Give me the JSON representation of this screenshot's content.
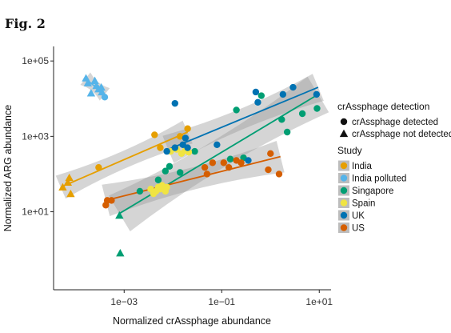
{
  "figure_label": "Fig. 2",
  "chart_data": {
    "type": "scatter",
    "xlabel": "Normalized crAssphage abundance",
    "ylabel": "Normalized ARG abundance",
    "x_scale": "log",
    "y_scale": "log",
    "xlim": [
      4e-05,
      15
    ],
    "ylim": [
      0.12,
      200000
    ],
    "x_ticks": [
      {
        "value": 0.001,
        "label": "1e−03"
      },
      {
        "value": 0.1,
        "label": "1e−01"
      },
      {
        "value": 10,
        "label": "1e+01"
      }
    ],
    "y_ticks": [
      {
        "value": 10,
        "label": "1e+01"
      },
      {
        "value": 1000,
        "label": "1e+03"
      },
      {
        "value": 100000,
        "label": "1e+05"
      }
    ],
    "grid": false,
    "legend_placement": "right",
    "detection_legend": {
      "title": "crAssphage detection",
      "items": [
        {
          "label": "crAssphage detected",
          "shape": "circle"
        },
        {
          "label": "crAssphage not detected",
          "shape": "triangle"
        }
      ]
    },
    "series_legend_title": "Study",
    "series": [
      {
        "name": "India",
        "color": "#E69F00",
        "points": [
          {
            "x": 5.5e-05,
            "y": 45,
            "shape": "triangle"
          },
          {
            "x": 7e-05,
            "y": 60,
            "shape": "triangle"
          },
          {
            "x": 7.5e-05,
            "y": 80,
            "shape": "triangle"
          },
          {
            "x": 8e-05,
            "y": 30,
            "shape": "triangle"
          },
          {
            "x": 0.0003,
            "y": 150,
            "shape": "circle"
          },
          {
            "x": 0.0042,
            "y": 1100,
            "shape": "circle"
          },
          {
            "x": 0.0055,
            "y": 500,
            "shape": "circle"
          },
          {
            "x": 0.014,
            "y": 1000,
            "shape": "circle"
          },
          {
            "x": 0.02,
            "y": 1600,
            "shape": "circle"
          }
        ],
        "fit": {
          "x0": 5e-05,
          "y0": 45,
          "x1": 0.02,
          "y1": 1300
        }
      },
      {
        "name": "India polluted",
        "color": "#56B4E9",
        "points": [
          {
            "x": 0.000165,
            "y": 35000,
            "shape": "triangle"
          },
          {
            "x": 0.00018,
            "y": 26000,
            "shape": "triangle"
          },
          {
            "x": 0.00021,
            "y": 14000,
            "shape": "triangle"
          },
          {
            "x": 0.00025,
            "y": 30000,
            "shape": "triangle"
          },
          {
            "x": 0.00027,
            "y": 22000,
            "shape": "triangle"
          },
          {
            "x": 0.0003,
            "y": 18000,
            "shape": "triangle"
          },
          {
            "x": 0.00034,
            "y": 20000,
            "shape": "triangle"
          },
          {
            "x": 0.00035,
            "y": 15000,
            "shape": "triangle"
          },
          {
            "x": 0.0004,
            "y": 11000,
            "shape": "circle"
          }
        ],
        "fit": {
          "x0": 0.00016,
          "y0": 34000,
          "x1": 0.0004,
          "y1": 13000
        }
      },
      {
        "name": "Singapore",
        "color": "#009E73",
        "points": [
          {
            "x": 0.0008,
            "y": 8,
            "shape": "triangle"
          },
          {
            "x": 0.00083,
            "y": 0.8,
            "shape": "triangle"
          },
          {
            "x": 0.0021,
            "y": 35,
            "shape": "circle"
          },
          {
            "x": 0.005,
            "y": 70,
            "shape": "circle"
          },
          {
            "x": 0.007,
            "y": 120,
            "shape": "circle"
          },
          {
            "x": 0.0085,
            "y": 160,
            "shape": "circle"
          },
          {
            "x": 0.014,
            "y": 110,
            "shape": "circle"
          },
          {
            "x": 0.028,
            "y": 400,
            "shape": "circle"
          },
          {
            "x": 0.15,
            "y": 250,
            "shape": "circle"
          },
          {
            "x": 0.2,
            "y": 5000,
            "shape": "circle"
          },
          {
            "x": 0.28,
            "y": 270,
            "shape": "circle"
          },
          {
            "x": 0.65,
            "y": 12000,
            "shape": "circle"
          },
          {
            "x": 1.7,
            "y": 2800,
            "shape": "circle"
          },
          {
            "x": 2.2,
            "y": 1300,
            "shape": "circle"
          },
          {
            "x": 4.5,
            "y": 4000,
            "shape": "circle"
          },
          {
            "x": 9.0,
            "y": 5500,
            "shape": "circle"
          }
        ],
        "fit": {
          "x0": 0.0008,
          "y0": 9,
          "x1": 9.5,
          "y1": 13000
        }
      },
      {
        "name": "Spain",
        "color": "#F0E442",
        "points": [
          {
            "x": 0.0035,
            "y": 40,
            "shape": "circle"
          },
          {
            "x": 0.004,
            "y": 30,
            "shape": "circle"
          },
          {
            "x": 0.0045,
            "y": 35,
            "shape": "circle"
          },
          {
            "x": 0.005,
            "y": 45,
            "shape": "circle"
          },
          {
            "x": 0.0055,
            "y": 40,
            "shape": "circle"
          },
          {
            "x": 0.006,
            "y": 50,
            "shape": "circle"
          },
          {
            "x": 0.0065,
            "y": 45,
            "shape": "circle"
          },
          {
            "x": 0.007,
            "y": 35,
            "shape": "circle"
          },
          {
            "x": 0.0075,
            "y": 45,
            "shape": "circle"
          },
          {
            "x": 0.009,
            "y": 400,
            "shape": "circle"
          },
          {
            "x": 0.012,
            "y": 450,
            "shape": "circle"
          },
          {
            "x": 0.015,
            "y": 350,
            "shape": "circle"
          },
          {
            "x": 0.018,
            "y": 420,
            "shape": "circle"
          },
          {
            "x": 0.021,
            "y": 380,
            "shape": "circle"
          }
        ]
      },
      {
        "name": "UK",
        "color": "#0072B2",
        "points": [
          {
            "x": 0.0075,
            "y": 400,
            "shape": "circle"
          },
          {
            "x": 0.011,
            "y": 7500,
            "shape": "circle"
          },
          {
            "x": 0.011,
            "y": 500,
            "shape": "circle"
          },
          {
            "x": 0.016,
            "y": 600,
            "shape": "circle"
          },
          {
            "x": 0.018,
            "y": 900,
            "shape": "circle"
          },
          {
            "x": 0.02,
            "y": 500,
            "shape": "circle"
          },
          {
            "x": 0.08,
            "y": 600,
            "shape": "circle"
          },
          {
            "x": 0.35,
            "y": 230,
            "shape": "circle"
          },
          {
            "x": 0.5,
            "y": 15000,
            "shape": "circle"
          },
          {
            "x": 0.55,
            "y": 8000,
            "shape": "circle"
          },
          {
            "x": 1.8,
            "y": 13000,
            "shape": "circle"
          },
          {
            "x": 2.9,
            "y": 20000,
            "shape": "circle"
          },
          {
            "x": 8.8,
            "y": 13000,
            "shape": "circle"
          }
        ],
        "fit": {
          "x0": 0.008,
          "y0": 450,
          "x1": 9.5,
          "y1": 20000
        }
      },
      {
        "name": "US",
        "color": "#D55E00",
        "points": [
          {
            "x": 0.00042,
            "y": 15,
            "shape": "circle"
          },
          {
            "x": 0.00045,
            "y": 20,
            "shape": "circle"
          },
          {
            "x": 0.00055,
            "y": 20,
            "shape": "circle"
          },
          {
            "x": 0.045,
            "y": 150,
            "shape": "circle"
          },
          {
            "x": 0.05,
            "y": 100,
            "shape": "circle"
          },
          {
            "x": 0.065,
            "y": 200,
            "shape": "circle"
          },
          {
            "x": 0.11,
            "y": 200,
            "shape": "circle"
          },
          {
            "x": 0.14,
            "y": 150,
            "shape": "circle"
          },
          {
            "x": 0.2,
            "y": 230,
            "shape": "circle"
          },
          {
            "x": 0.25,
            "y": 200,
            "shape": "circle"
          },
          {
            "x": 0.9,
            "y": 130,
            "shape": "circle"
          },
          {
            "x": 1.0,
            "y": 350,
            "shape": "circle"
          },
          {
            "x": 1.5,
            "y": 100,
            "shape": "circle"
          }
        ],
        "fit": {
          "x0": 0.00042,
          "y0": 20,
          "x1": 1.6,
          "y1": 290
        }
      }
    ]
  }
}
